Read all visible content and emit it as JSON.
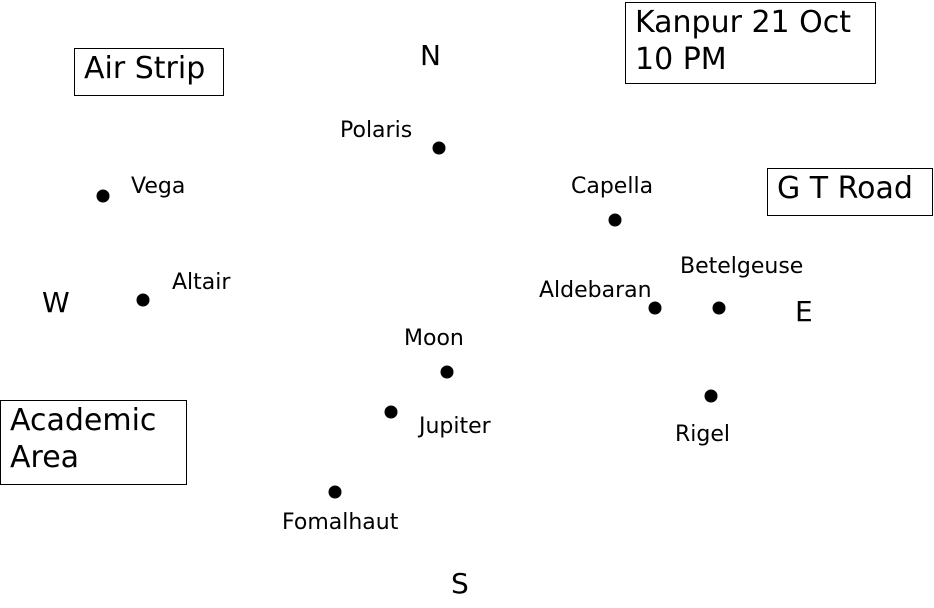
{
  "boxes": {
    "air_strip": "Air Strip",
    "title_line1": "Kanpur 21 Oct",
    "title_line2": "10 PM",
    "gt_road": "G T Road",
    "academic_line1": "Academic",
    "academic_line2": "Area"
  },
  "directions": {
    "north": "N",
    "south": "S",
    "east": "E",
    "west": "W"
  },
  "objects": {
    "polaris": "Polaris",
    "vega": "Vega",
    "capella": "Capella",
    "altair": "Altair",
    "betelgeuse": "Betelgeuse",
    "aldebaran": "Aldebaran",
    "moon": "Moon",
    "jupiter": "Jupiter",
    "rigel": "Rigel",
    "fomalhaut": "Fomalhaut"
  }
}
